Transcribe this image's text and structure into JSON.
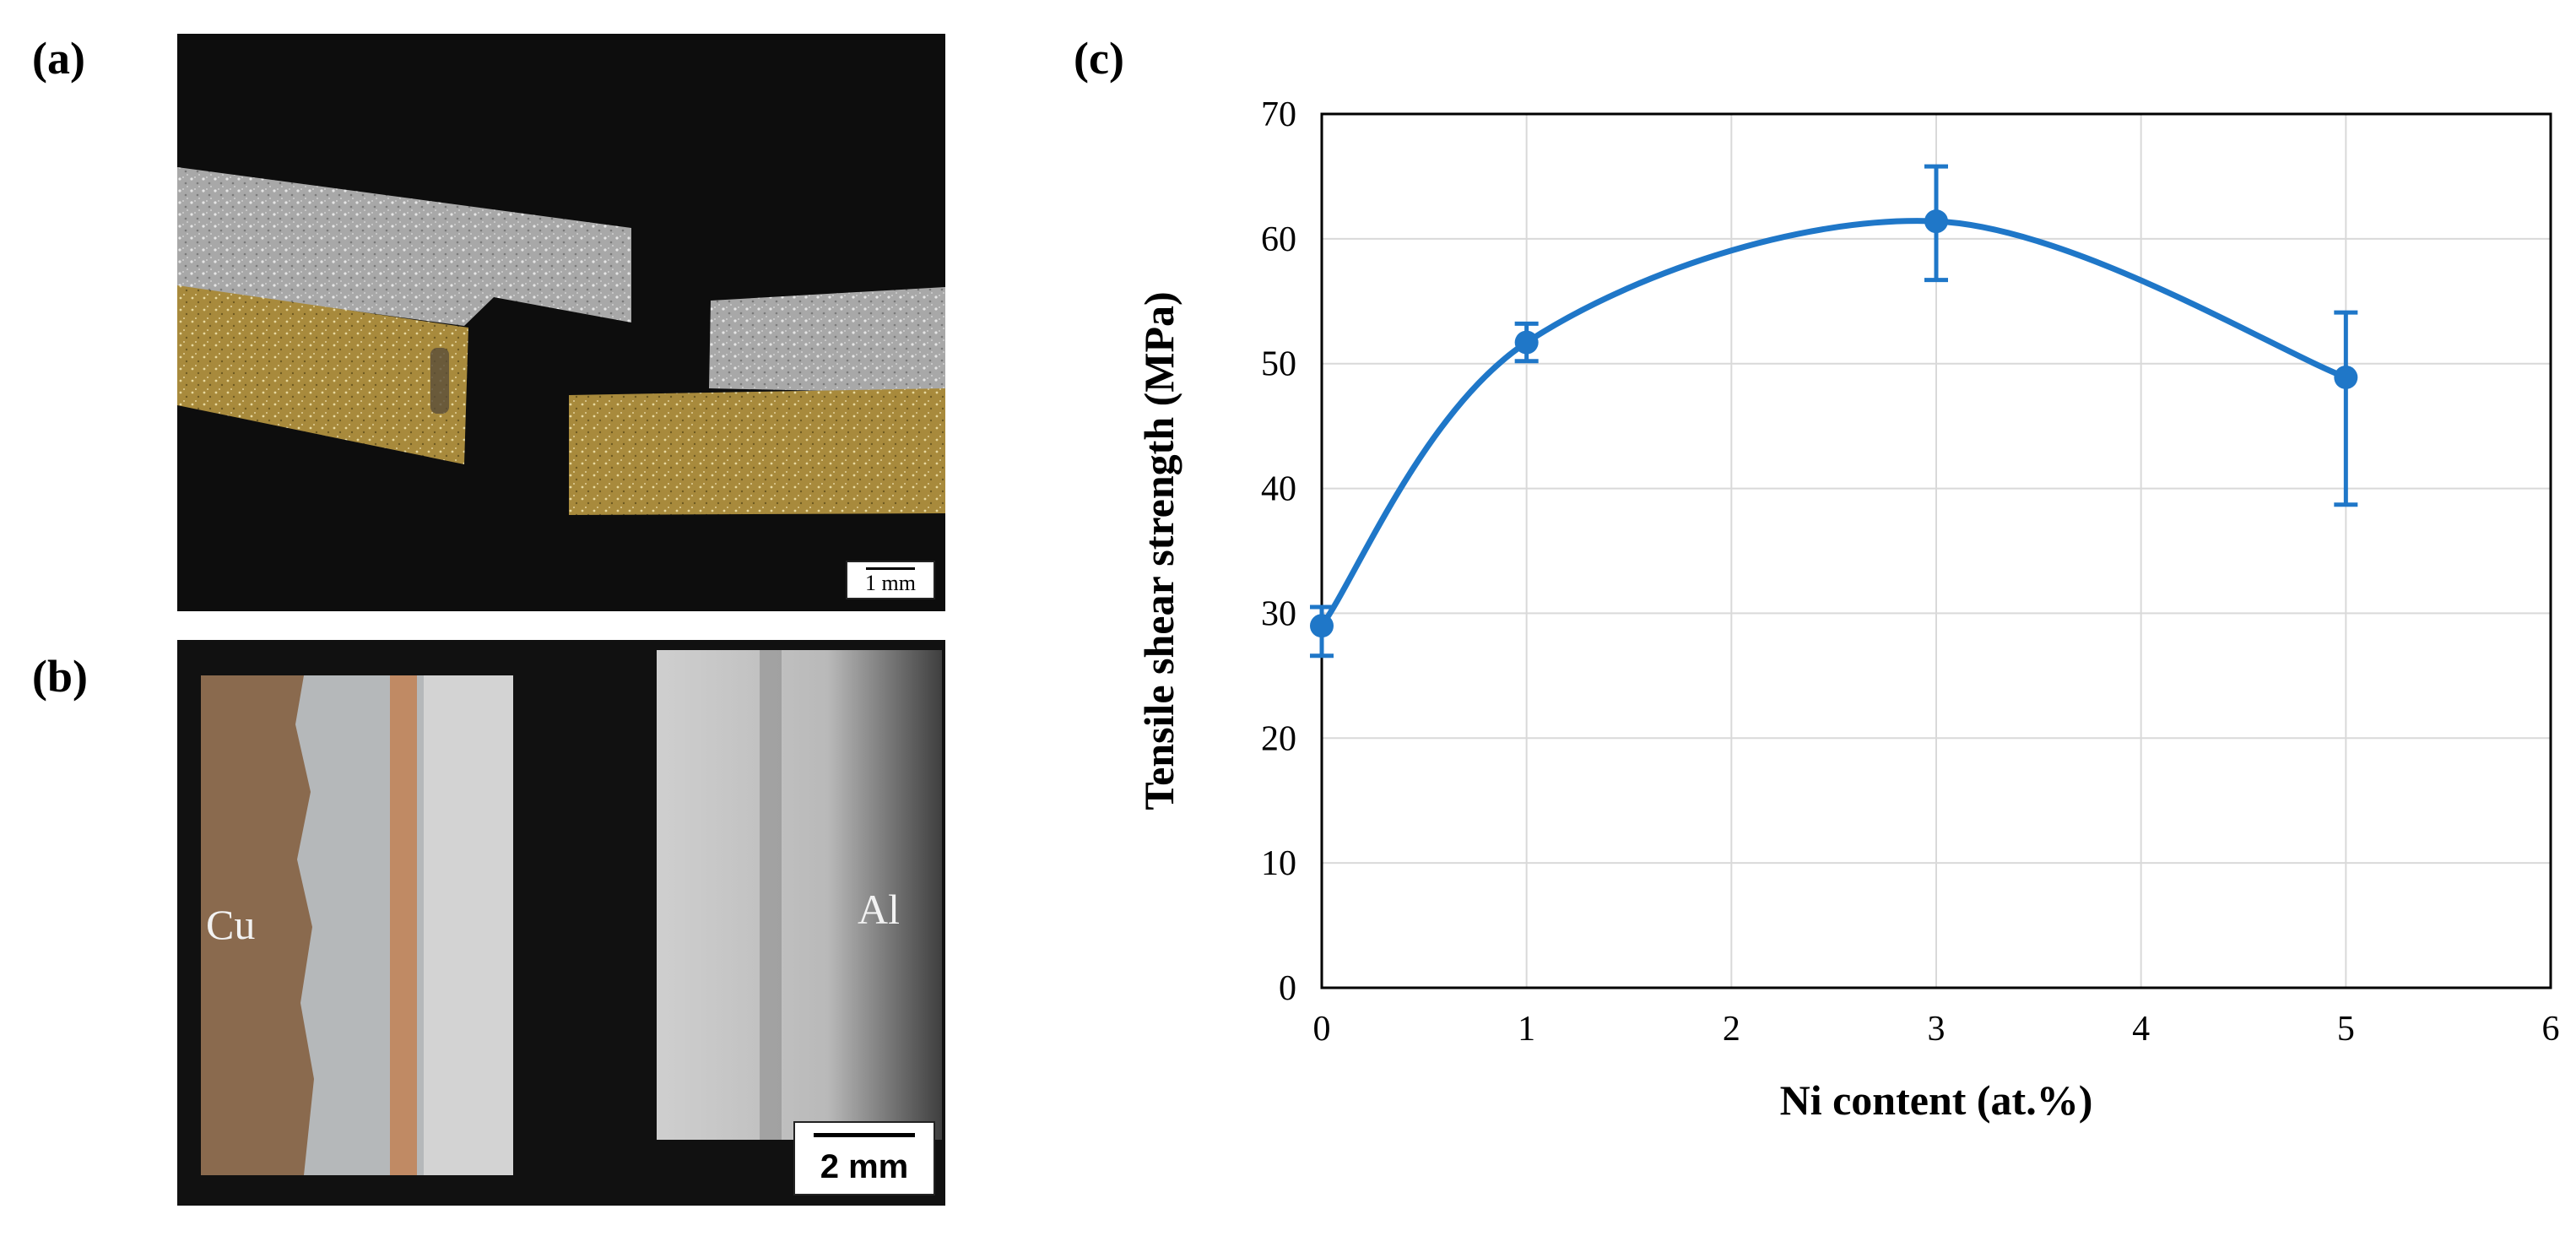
{
  "panels": {
    "a": {
      "label": "(a)",
      "scale_bar": "1 mm"
    },
    "b": {
      "label": "(b)",
      "scale_bar": "2 mm",
      "left_material": "Cu",
      "right_material": "Al"
    },
    "c": {
      "label": "(c)"
    }
  },
  "chart_data": {
    "type": "line",
    "xlabel": "Ni content (at.%)",
    "ylabel": "Tensile shear strength (MPa)",
    "xlim": [
      0,
      6
    ],
    "ylim": [
      0,
      70
    ],
    "x_ticks": [
      0,
      1,
      2,
      3,
      4,
      5,
      6
    ],
    "y_ticks": [
      0,
      10,
      20,
      30,
      40,
      50,
      60,
      70
    ],
    "grid": true,
    "smooth": true,
    "series": [
      {
        "color": "#1f77c8",
        "x": [
          0,
          1,
          3,
          5
        ],
        "y": [
          29,
          51.7,
          61.4,
          48.9
        ],
        "error_low": [
          26.6,
          50.2,
          56.7,
          38.7
        ],
        "error_high": [
          30.5,
          53.2,
          65.8,
          54.1
        ]
      }
    ]
  }
}
